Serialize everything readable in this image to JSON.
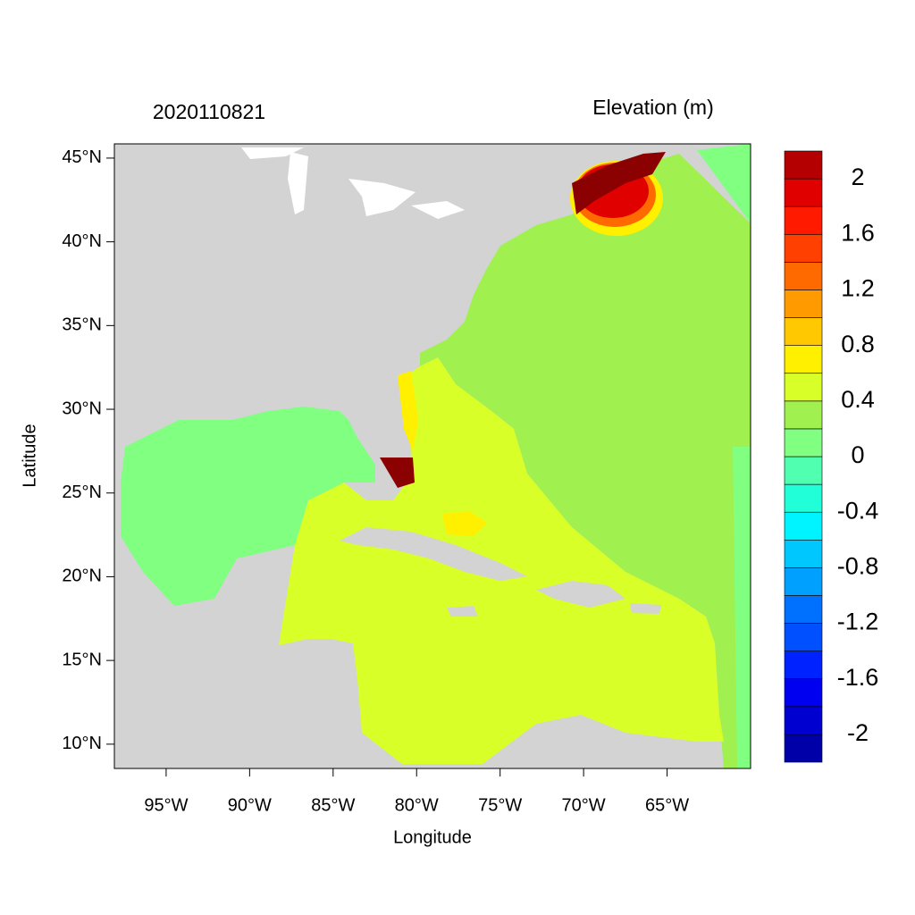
{
  "chart_data": {
    "type": "contour-map",
    "title": "2020110821",
    "subtitle": "Elevation (m)",
    "x_label": "Longitude",
    "y_label": "Latitude",
    "xlim": [
      -98.1,
      -60
    ],
    "ylim": [
      8.55,
      45.85
    ],
    "xticks": [
      {
        "value": -95,
        "label": "95°W"
      },
      {
        "value": -90,
        "label": "90°W"
      },
      {
        "value": -85,
        "label": "85°W"
      },
      {
        "value": -80,
        "label": "80°W"
      },
      {
        "value": -75,
        "label": "75°W"
      },
      {
        "value": -70,
        "label": "70°W"
      },
      {
        "value": -65,
        "label": "65°W"
      }
    ],
    "yticks": [
      {
        "value": 10,
        "label": "10°N"
      },
      {
        "value": 15,
        "label": "15°N"
      },
      {
        "value": 20,
        "label": "20°N"
      },
      {
        "value": 25,
        "label": "25°N"
      },
      {
        "value": 30,
        "label": "30°N"
      },
      {
        "value": 35,
        "label": "35°N"
      },
      {
        "value": 40,
        "label": "40°N"
      },
      {
        "value": 45,
        "label": "45°N"
      }
    ],
    "colorbar": {
      "lim": [
        -2.2,
        2.2
      ],
      "levels": [
        -2.2,
        -2,
        -1.8,
        -1.6,
        -1.4,
        -1.2,
        -1,
        -0.8,
        -0.6,
        -0.4,
        -0.2,
        0,
        0.2,
        0.4,
        0.6,
        0.8,
        1,
        1.2,
        1.4,
        1.6,
        1.8,
        2,
        2.2
      ],
      "colors": [
        "#0000a8",
        "#0000d0",
        "#0000f0",
        "#0022ff",
        "#0050ff",
        "#0070ff",
        "#00a0ff",
        "#00c8ff",
        "#00f4ff",
        "#20ffd8",
        "#50ffb0",
        "#80ff80",
        "#a0f050",
        "#d8ff28",
        "#fff000",
        "#ffc800",
        "#ff9a00",
        "#ff6a00",
        "#ff4000",
        "#ff1a00",
        "#e00000",
        "#b40000",
        "#8b0000"
      ],
      "ticks": [
        -2,
        -1.6,
        -1.2,
        -0.8,
        -0.4,
        0,
        0.4,
        0.8,
        1.2,
        1.6,
        2
      ]
    }
  }
}
